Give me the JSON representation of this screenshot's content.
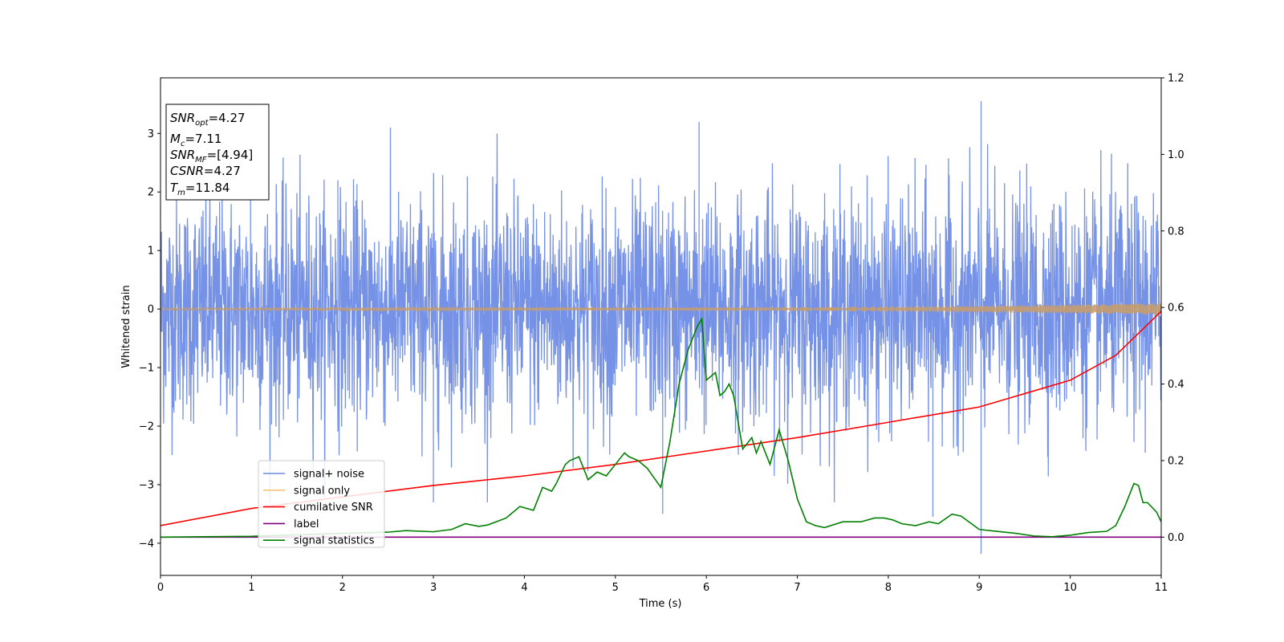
{
  "chart_data": {
    "type": "line",
    "xlabel": "Time (s)",
    "ylabel": "Whitened strain",
    "xlim": [
      0,
      11
    ],
    "ylim": [
      -4.55,
      3.95
    ],
    "y2lim": [
      -0.1,
      1.2
    ],
    "x_ticks": [
      0,
      1,
      2,
      3,
      4,
      5,
      6,
      7,
      8,
      9,
      10,
      11
    ],
    "y_ticks": [
      -4,
      -3,
      -2,
      -1,
      0,
      1,
      2,
      3
    ],
    "y2_ticks": [
      "0.0",
      "0.2",
      "0.4",
      "0.6",
      "0.8",
      "1.0",
      "1.2"
    ],
    "grid": false,
    "legend_position": "lower-left",
    "colors": {
      "signal_noise": "#6f8ce6",
      "signal_only": "#f5c27a",
      "cumulative_snr": "#ff0000",
      "label": "#800080",
      "signal_statistics": "#008000"
    },
    "series": [
      {
        "name": "signal+ noise",
        "axis": "left",
        "kind": "noise",
        "mean": 0,
        "typical_range": [
          -1.6,
          1.6
        ],
        "peak_high": [
          [
            9.02,
            3.55
          ],
          [
            1.95,
            2.2
          ],
          [
            0.99,
            3.25
          ],
          [
            5.92,
            3.2
          ]
        ],
        "peak_low": [
          [
            9.02,
            -4.18
          ],
          [
            3.0,
            -3.3
          ],
          [
            5.52,
            -3.5
          ],
          [
            8.49,
            -3.55
          ]
        ]
      },
      {
        "name": "signal only",
        "axis": "left",
        "kind": "chirp",
        "amplitude_start": 0.02,
        "amplitude_end": 0.1
      },
      {
        "name": "cumilative SNR",
        "axis": "right",
        "x": [
          0,
          1,
          2,
          3,
          4,
          5,
          6,
          7,
          8,
          9,
          10,
          10.5,
          11
        ],
        "y": [
          0.03,
          0.075,
          0.105,
          0.135,
          0.16,
          0.19,
          0.225,
          0.26,
          0.3,
          0.34,
          0.41,
          0.475,
          0.59
        ]
      },
      {
        "name": "label",
        "axis": "right",
        "x": [
          0,
          11
        ],
        "y": [
          0.0,
          0.0
        ]
      },
      {
        "name": "signal statistics",
        "axis": "right",
        "x": [
          0,
          1,
          1.5,
          2,
          2.5,
          2.7,
          3,
          3.2,
          3.35,
          3.5,
          3.6,
          3.8,
          3.95,
          4.1,
          4.2,
          4.3,
          4.35,
          4.45,
          4.5,
          4.6,
          4.7,
          4.8,
          4.9,
          5.0,
          5.1,
          5.15,
          5.25,
          5.35,
          5.5,
          5.6,
          5.7,
          5.8,
          5.9,
          5.95,
          6.0,
          6.1,
          6.15,
          6.2,
          6.25,
          6.3,
          6.4,
          6.5,
          6.55,
          6.6,
          6.7,
          6.8,
          6.85,
          6.9,
          7.0,
          7.1,
          7.2,
          7.3,
          7.5,
          7.7,
          7.85,
          7.95,
          8.05,
          8.15,
          8.3,
          8.45,
          8.55,
          8.7,
          8.8,
          9.0,
          9.2,
          9.4,
          9.6,
          9.8,
          10.0,
          10.2,
          10.4,
          10.5,
          10.6,
          10.65,
          10.7,
          10.75,
          10.8,
          10.85,
          10.95,
          11.0
        ],
        "y": [
          0.0,
          0.002,
          0.006,
          0.01,
          0.013,
          0.017,
          0.014,
          0.02,
          0.035,
          0.028,
          0.032,
          0.05,
          0.08,
          0.07,
          0.13,
          0.12,
          0.14,
          0.19,
          0.2,
          0.21,
          0.15,
          0.17,
          0.16,
          0.19,
          0.22,
          0.21,
          0.2,
          0.18,
          0.13,
          0.25,
          0.4,
          0.49,
          0.55,
          0.57,
          0.41,
          0.43,
          0.37,
          0.38,
          0.4,
          0.37,
          0.23,
          0.26,
          0.22,
          0.25,
          0.19,
          0.28,
          0.24,
          0.2,
          0.1,
          0.04,
          0.03,
          0.025,
          0.04,
          0.04,
          0.05,
          0.05,
          0.045,
          0.035,
          0.03,
          0.04,
          0.035,
          0.06,
          0.055,
          0.02,
          0.015,
          0.01,
          0.003,
          0.001,
          0.005,
          0.012,
          0.015,
          0.03,
          0.08,
          0.11,
          0.14,
          0.135,
          0.09,
          0.09,
          0.065,
          0.04
        ]
      }
    ]
  },
  "info_box": {
    "snr_opt": {
      "main": "SNR",
      "sub": "opt",
      "value": "=4.27"
    },
    "mc": {
      "main": "M",
      "sub": "c",
      "value": "=7.11"
    },
    "snr_mf": {
      "main": "SNR",
      "sub": "MF",
      "value": "=[4.94]"
    },
    "csnr": {
      "main": "CSNR",
      "value": "=4.27"
    },
    "tm": {
      "main": "T",
      "sub": "m",
      "value": "=11.84"
    }
  },
  "legend": {
    "items": [
      {
        "label": "signal+ noise",
        "color": "#6f8ce6"
      },
      {
        "label": "signal only",
        "color": "#f5c27a"
      },
      {
        "label": "cumilative SNR",
        "color": "#ff0000"
      },
      {
        "label": "label",
        "color": "#800080"
      },
      {
        "label": "signal statistics",
        "color": "#008000"
      }
    ]
  }
}
